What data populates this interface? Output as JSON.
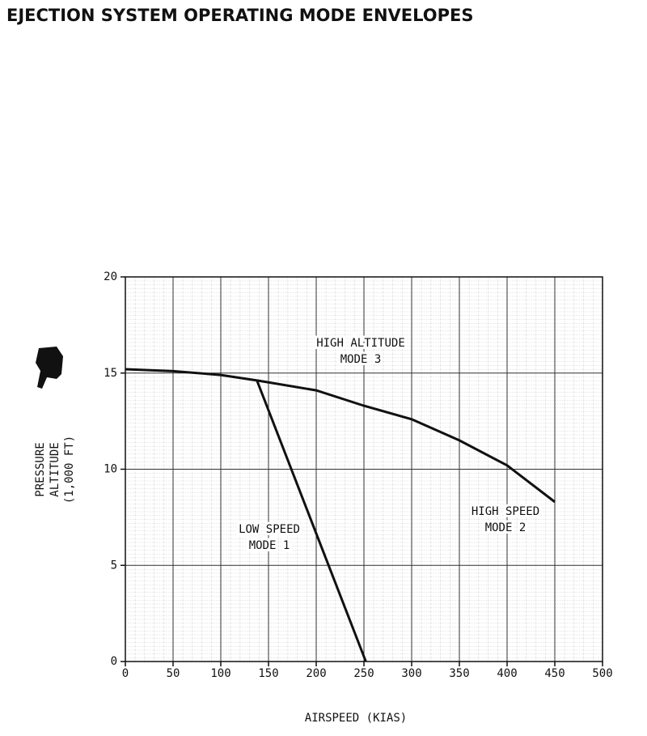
{
  "chart_data": {
    "type": "line",
    "title": "EJECTION SYSTEM OPERATING MODE ENVELOPES",
    "xlabel": "AIRSPEED (KIAS)",
    "ylabel": [
      "PRESSURE",
      "ALTITUDE",
      "(1,000 FT)"
    ],
    "xlim": [
      0,
      500
    ],
    "xticks": [
      0,
      50,
      100,
      150,
      200,
      250,
      300,
      350,
      400,
      450,
      500
    ],
    "ylim": [
      0,
      20
    ],
    "yticks": [
      0,
      5,
      10,
      15,
      20
    ],
    "grid": true,
    "series": [
      {
        "color": "#111111",
        "x": [
          0,
          50,
          100,
          140,
          200,
          250,
          300,
          350,
          400,
          450
        ],
        "values": [
          15.2,
          15.1,
          14.9,
          14.6,
          14.1,
          13.3,
          12.6,
          11.5,
          10.2,
          8.3
        ]
      },
      {
        "color": "#111111",
        "x": [
          138,
          252
        ],
        "values": [
          14.6,
          0
        ]
      }
    ],
    "annotations": [
      [
        "HIGH ALTITUDE",
        "MODE 3"
      ],
      [
        "LOW SPEED",
        "MODE 1"
      ],
      [
        "HIGH SPEED",
        "MODE 2"
      ]
    ]
  }
}
